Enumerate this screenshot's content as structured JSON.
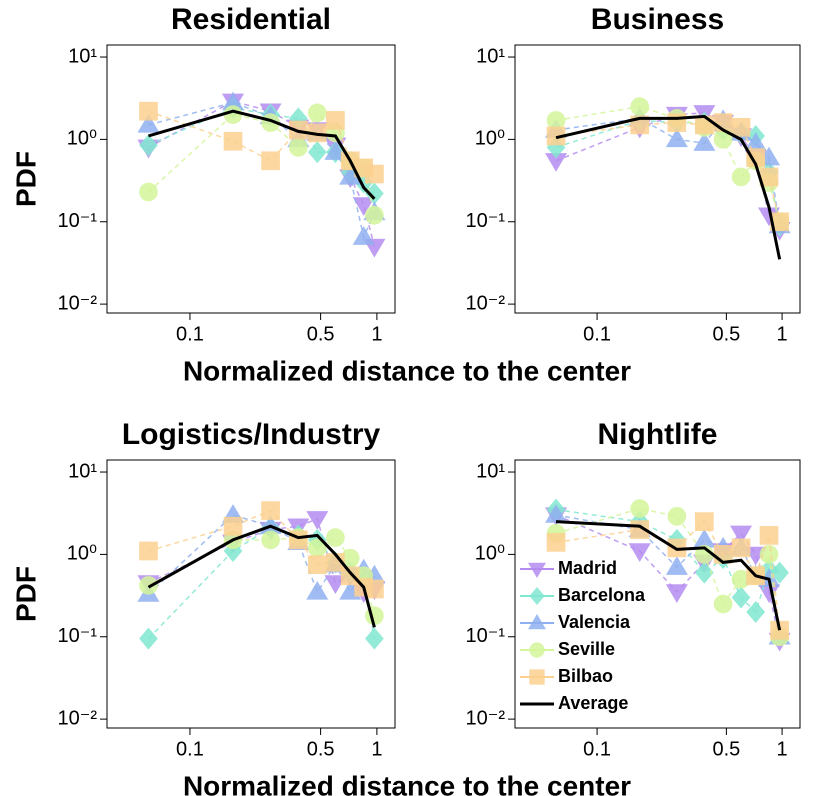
{
  "chart_data": [
    {
      "type": "line",
      "title": "Residential",
      "ylabel": "PDF",
      "xlabel": "Normalized distance to the center",
      "log_x": true,
      "log_y": true,
      "xlim": [
        0.036,
        1.25
      ],
      "ylim": [
        0.0078,
        14
      ],
      "xticks": [
        0.1,
        0.5,
        1
      ],
      "yticks": [
        {
          "value": 0.01,
          "label": "10⁻²"
        },
        {
          "value": 0.1,
          "label": "10⁻¹"
        },
        {
          "value": 1,
          "label": "10⁰"
        },
        {
          "value": 10,
          "label": "10¹"
        }
      ],
      "x": [
        0.06,
        0.17,
        0.27,
        0.38,
        0.48,
        0.6,
        0.72,
        0.85,
        0.97
      ],
      "series": [
        {
          "color": "#b48cf0",
          "marker": "triangle-down",
          "values": [
            0.8,
            2.9,
            2.2,
            1.4,
            1.3,
            0.85,
            0.35,
            0.16,
            0.05
          ]
        },
        {
          "color": "#80e8d0",
          "marker": "diamond",
          "values": [
            0.85,
            2.4,
            2.0,
            1.8,
            0.7,
            0.7,
            0.4,
            0.3,
            0.22
          ]
        },
        {
          "color": "#8fb0f0",
          "marker": "triangle-up",
          "values": [
            1.5,
            2.8,
            1.9,
            1.0,
            1.2,
            0.7,
            0.35,
            0.065,
            0.13
          ]
        },
        {
          "color": "#d4f59a",
          "marker": "circle",
          "values": [
            0.23,
            2.0,
            1.6,
            0.8,
            2.1,
            1.2,
            0.55,
            0.45,
            0.12
          ]
        },
        {
          "color": "#fbd08f",
          "marker": "square",
          "values": [
            2.2,
            0.95,
            0.55,
            1.3,
            1.2,
            1.7,
            0.55,
            0.45,
            0.38
          ]
        },
        {
          "color": "#000000",
          "marker": "none",
          "values": [
            1.1,
            2.2,
            1.7,
            1.25,
            1.15,
            1.1,
            0.55,
            0.26,
            0.19
          ]
        }
      ]
    },
    {
      "type": "line",
      "title": "Business",
      "log_x": true,
      "log_y": true,
      "xlim": [
        0.036,
        1.25
      ],
      "ylim": [
        0.0078,
        14
      ],
      "xticks": [
        0.1,
        0.5,
        1
      ],
      "yticks": [
        {
          "value": 0.01,
          "label": "10⁻²"
        },
        {
          "value": 0.1,
          "label": "10⁻¹"
        },
        {
          "value": 1,
          "label": "10⁰"
        },
        {
          "value": 10,
          "label": "10¹"
        }
      ],
      "x": [
        0.06,
        0.17,
        0.27,
        0.38,
        0.48,
        0.6,
        0.72,
        0.85,
        0.97
      ],
      "series": [
        {
          "color": "#b48cf0",
          "marker": "triangle-down",
          "values": [
            0.55,
            1.4,
            2.0,
            2.1,
            1.6,
            1.1,
            0.6,
            0.12,
            0.08
          ]
        },
        {
          "color": "#80e8d0",
          "marker": "diamond",
          "values": [
            0.8,
            1.7,
            1.6,
            1.6,
            1.3,
            1.2,
            1.1,
            0.4,
            0.09
          ]
        },
        {
          "color": "#8fb0f0",
          "marker": "triangle-up",
          "values": [
            1.3,
            1.8,
            1.0,
            0.9,
            1.7,
            1.2,
            0.9,
            0.6,
            0.09
          ]
        },
        {
          "color": "#d4f59a",
          "marker": "circle",
          "values": [
            1.7,
            2.5,
            1.8,
            1.4,
            1.0,
            0.35,
            0.55,
            0.3,
            0.1
          ]
        },
        {
          "color": "#fbd08f",
          "marker": "square",
          "values": [
            1.1,
            1.5,
            1.6,
            1.5,
            1.6,
            1.4,
            0.6,
            0.35,
            0.1
          ]
        },
        {
          "color": "#000000",
          "marker": "none",
          "values": [
            1.05,
            1.8,
            1.8,
            1.9,
            1.3,
            1.0,
            0.5,
            0.15,
            0.035
          ]
        }
      ]
    },
    {
      "type": "line",
      "title": "Logistics/Industry",
      "ylabel": "PDF",
      "xlabel": "Normalized distance to the center",
      "log_x": true,
      "log_y": true,
      "xlim": [
        0.036,
        1.25
      ],
      "ylim": [
        0.0078,
        14
      ],
      "xticks": [
        0.1,
        0.5,
        1
      ],
      "yticks": [
        {
          "value": 0.01,
          "label": "10⁻²"
        },
        {
          "value": 0.1,
          "label": "10⁻¹"
        },
        {
          "value": 1,
          "label": "10⁰"
        },
        {
          "value": 10,
          "label": "10¹"
        }
      ],
      "x": [
        0.06,
        0.17,
        0.27,
        0.38,
        0.48,
        0.6,
        0.72,
        0.85,
        0.97
      ],
      "series": [
        {
          "color": "#b48cf0",
          "marker": "triangle-down",
          "values": [
            0.45,
            1.4,
            2.0,
            2.2,
            2.7,
            0.45,
            0.55,
            0.35,
            0.38
          ]
        },
        {
          "color": "#80e8d0",
          "marker": "diamond",
          "values": [
            0.095,
            1.1,
            2.1,
            1.7,
            1.5,
            0.8,
            0.6,
            0.5,
            0.095
          ]
        },
        {
          "color": "#8fb0f0",
          "marker": "triangle-up",
          "values": [
            0.33,
            3.0,
            2.2,
            1.4,
            0.35,
            0.75,
            0.35,
            0.65,
            0.55
          ]
        },
        {
          "color": "#d4f59a",
          "marker": "circle",
          "values": [
            0.42,
            1.5,
            1.5,
            1.6,
            1.2,
            1.6,
            0.9,
            0.55,
            0.18
          ]
        },
        {
          "color": "#fbd08f",
          "marker": "square",
          "values": [
            1.1,
            2.2,
            3.4,
            1.5,
            0.75,
            0.8,
            0.55,
            0.4,
            0.38
          ]
        },
        {
          "color": "#000000",
          "marker": "none",
          "values": [
            0.4,
            1.5,
            2.2,
            1.6,
            1.7,
            1.0,
            0.6,
            0.4,
            0.13
          ]
        }
      ]
    },
    {
      "type": "line",
      "title": "Nightlife",
      "legend": "lower left",
      "log_x": true,
      "log_y": true,
      "xlim": [
        0.036,
        1.25
      ],
      "ylim": [
        0.0078,
        14
      ],
      "xticks": [
        0.1,
        0.5,
        1
      ],
      "yticks": [
        {
          "value": 0.01,
          "label": "10⁻²"
        },
        {
          "value": 0.1,
          "label": "10⁻¹"
        },
        {
          "value": 1,
          "label": "10⁰"
        },
        {
          "value": 10,
          "label": "10¹"
        }
      ],
      "x": [
        0.06,
        0.17,
        0.27,
        0.38,
        0.48,
        0.6,
        0.72,
        0.85,
        0.97
      ],
      "series": [
        {
          "name": "Madrid",
          "color": "#b48cf0",
          "marker": "triangle-down",
          "values": [
            3.0,
            1.1,
            0.35,
            0.8,
            1.1,
            1.8,
            1.0,
            0.35,
            0.09
          ]
        },
        {
          "name": "Barcelona",
          "color": "#80e8d0",
          "marker": "diamond",
          "values": [
            3.5,
            2.5,
            1.5,
            0.6,
            0.9,
            0.3,
            0.2,
            0.65,
            0.6
          ]
        },
        {
          "name": "Valencia",
          "color": "#8fb0f0",
          "marker": "triangle-up",
          "values": [
            3.0,
            2.0,
            0.7,
            1.5,
            1.2,
            1.2,
            0.55,
            0.5,
            0.1
          ]
        },
        {
          "name": "Seville",
          "color": "#d4f59a",
          "marker": "circle",
          "values": [
            1.8,
            3.6,
            2.9,
            1.0,
            0.25,
            0.5,
            0.55,
            1.0,
            0.1
          ]
        },
        {
          "name": "Bilbao",
          "color": "#fbd08f",
          "marker": "square",
          "values": [
            1.4,
            2.0,
            1.2,
            2.5,
            1.0,
            1.2,
            0.55,
            1.7,
            0.12
          ]
        },
        {
          "name": "Average",
          "color": "#000000",
          "marker": "none",
          "values": [
            2.5,
            2.2,
            1.15,
            1.2,
            0.8,
            0.85,
            0.55,
            0.5,
            0.12
          ]
        }
      ]
    }
  ]
}
